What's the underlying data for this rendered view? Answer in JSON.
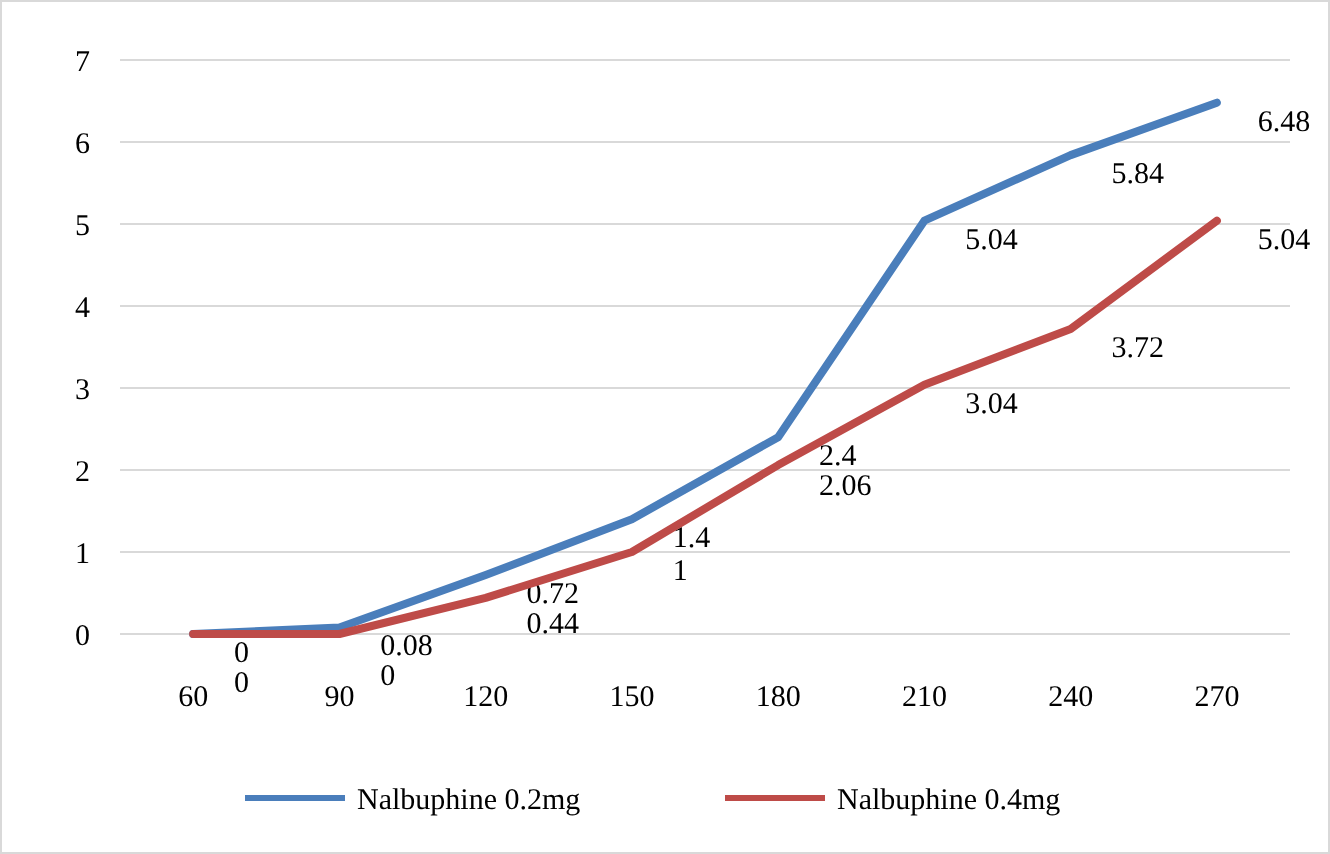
{
  "chart_data": {
    "type": "line",
    "categories": [
      "60",
      "90",
      "120",
      "150",
      "180",
      "210",
      "240",
      "270"
    ],
    "series": [
      {
        "name": "Nalbuphine 0.2mg",
        "color": "#4a7ebb",
        "values": [
          0,
          0.08,
          0.72,
          1.4,
          2.4,
          5.04,
          5.84,
          6.48
        ]
      },
      {
        "name": "Nalbuphine 0.4mg",
        "color": "#be4b48",
        "values": [
          0,
          0,
          0.44,
          1,
          2.06,
          3.04,
          3.72,
          5.04
        ]
      }
    ],
    "ylim": [
      0,
      7
    ],
    "yticks": [
      0,
      1,
      2,
      3,
      4,
      5,
      6,
      7
    ],
    "grid": "y",
    "legend": "bottom",
    "data_labels": true,
    "marker": "none",
    "line_style": "solid"
  }
}
